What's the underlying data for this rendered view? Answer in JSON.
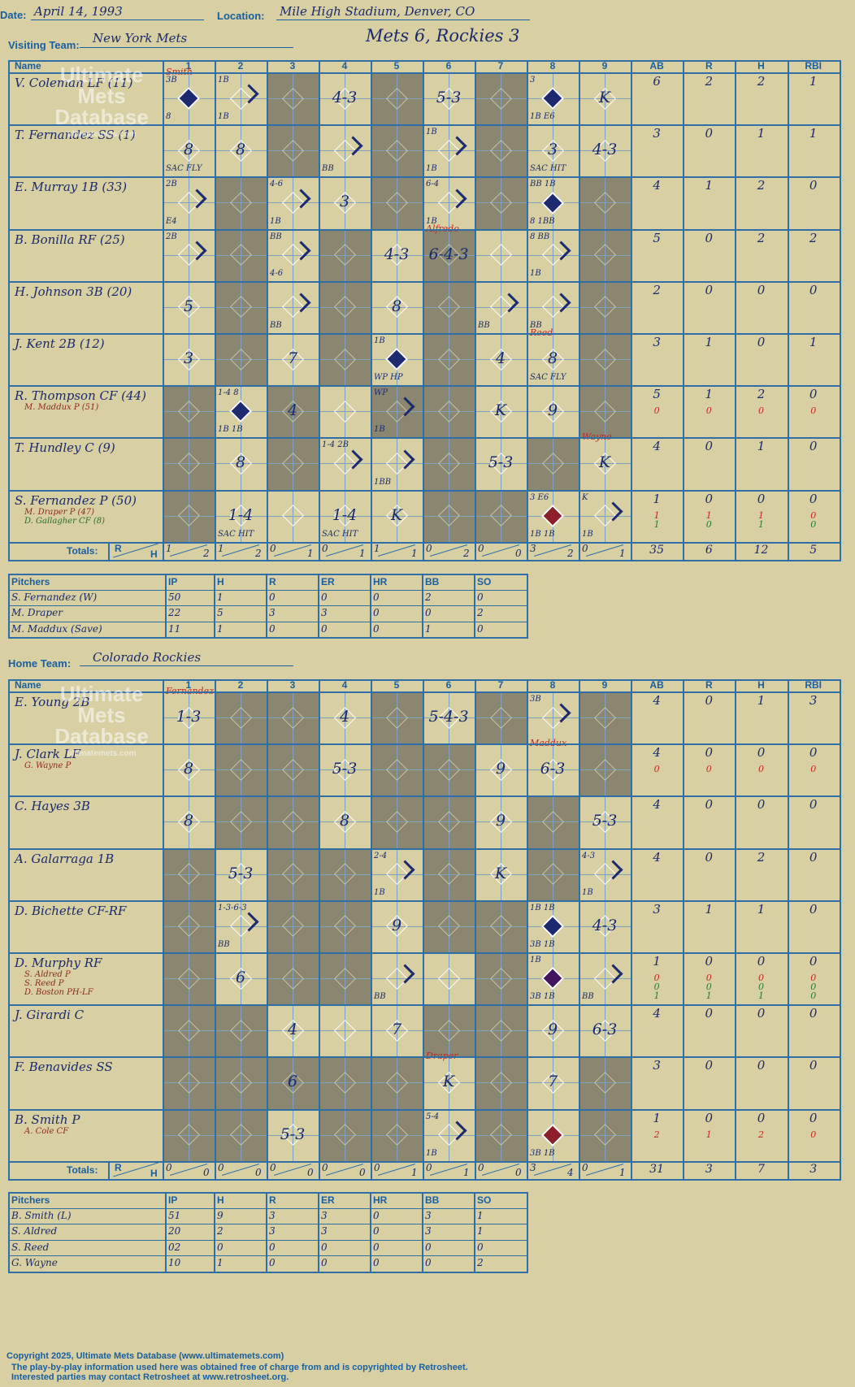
{
  "game": {
    "date_label": "Date:",
    "date": "April 14, 1993",
    "location_label": "Location:",
    "location": "Mile High Stadium, Denver, CO",
    "headline": "Mets 6, Rockies 3",
    "visiting_label": "Visiting Team:",
    "visiting_team": "New York Mets",
    "home_label": "Home Team:",
    "home_team": "Colorado Rockies"
  },
  "headers": {
    "name": "Name",
    "innings": [
      "1",
      "2",
      "3",
      "4",
      "5",
      "6",
      "7",
      "8",
      "9"
    ],
    "stats": [
      "AB",
      "R",
      "H",
      "RBI"
    ],
    "totals": "Totals:",
    "r": "R",
    "h": "H"
  },
  "watermark": {
    "line1": "Ultimate",
    "line2": "Mets",
    "line3": "Database",
    "url": "ultimatemets.com"
  },
  "visiting": {
    "players": [
      {
        "name": "V. Coleman LF (11)",
        "subs": [],
        "stats": [
          [
            "6",
            "2",
            "2",
            "1"
          ]
        ]
      },
      {
        "name": "T. Fernandez SS (1)",
        "subs": [],
        "stats": [
          [
            "3",
            "0",
            "1",
            "1"
          ]
        ]
      },
      {
        "name": "E. Murray 1B (33)",
        "subs": [],
        "stats": [
          [
            "4",
            "1",
            "2",
            "0"
          ]
        ]
      },
      {
        "name": "B. Bonilla RF (25)",
        "subs": [],
        "stats": [
          [
            "5",
            "0",
            "2",
            "2"
          ]
        ]
      },
      {
        "name": "H. Johnson 3B (20)",
        "subs": [],
        "stats": [
          [
            "2",
            "0",
            "0",
            "0"
          ]
        ]
      },
      {
        "name": "J. Kent 2B (12)",
        "subs": [],
        "stats": [
          [
            "3",
            "1",
            "0",
            "1"
          ]
        ]
      },
      {
        "name": "R. Thompson CF (44)",
        "subs": [
          "M. Maddux P (51)"
        ],
        "stats": [
          [
            "5",
            "1",
            "2",
            "0"
          ],
          [
            "0",
            "0",
            "0",
            "0"
          ]
        ]
      },
      {
        "name": "T. Hundley C (9)",
        "subs": [],
        "stats": [
          [
            "4",
            "0",
            "1",
            "0"
          ]
        ]
      },
      {
        "name": "S. Fernandez P (50)",
        "subs": [
          "M. Draper P (47)",
          "D. Gallagher CF (8)"
        ],
        "stats": [
          [
            "1",
            "0",
            "0",
            "0"
          ],
          [
            "1",
            "1",
            "1",
            "0"
          ],
          [
            "1",
            "0",
            "1",
            "0"
          ]
        ]
      }
    ],
    "totals": {
      "innings": [
        [
          "1",
          "2"
        ],
        [
          "1",
          "2"
        ],
        [
          "0",
          "1"
        ],
        [
          "0",
          "1"
        ],
        [
          "1",
          "1"
        ],
        [
          "0",
          "2"
        ],
        [
          "0",
          "0"
        ],
        [
          "3",
          "2"
        ],
        [
          "0",
          "1"
        ]
      ],
      "stats": [
        "35",
        "6",
        "12",
        "5"
      ]
    },
    "shaded": [
      [
        3,
        5,
        7
      ],
      [
        3,
        5,
        7
      ],
      [
        2,
        5,
        7,
        9
      ],
      [
        2,
        4,
        6,
        9
      ],
      [
        2,
        4,
        6,
        9
      ],
      [
        2,
        4,
        6,
        9
      ],
      [
        1,
        3,
        5,
        6,
        9
      ],
      [
        1,
        3,
        6,
        8
      ],
      [
        1,
        6,
        7
      ]
    ],
    "plays": [
      [
        {
          "i": 1,
          "t": "",
          "hit": "blue",
          "n": "3B",
          "n2": "8",
          "top": "Smith"
        },
        {
          "i": 2,
          "t": "",
          "path": "1B",
          "n": "1B",
          "n2": "1B"
        },
        {
          "i": 4,
          "t": "4-3"
        },
        {
          "i": 6,
          "t": "5-3"
        },
        {
          "i": 8,
          "t": "",
          "hit": "blue",
          "n": "3",
          "n2": "1B  E6"
        },
        {
          "i": 9,
          "t": "K"
        }
      ],
      [
        {
          "i": 1,
          "t": "8",
          "n2": "SAC FLY"
        },
        {
          "i": 2,
          "t": "8"
        },
        {
          "i": 4,
          "t": "",
          "path": "BB",
          "n2": "BB"
        },
        {
          "i": 6,
          "t": "",
          "path": "1B",
          "n": "1B",
          "n2": "1B"
        },
        {
          "i": 8,
          "t": "3",
          "n2": "SAC HIT"
        },
        {
          "i": 9,
          "t": "4-3"
        }
      ],
      [
        {
          "i": 1,
          "t": "",
          "path": "E4",
          "n": "2B",
          "n2": "E4"
        },
        {
          "i": 3,
          "t": "",
          "path": "1B",
          "n": "4-6",
          "n2": "1B"
        },
        {
          "i": 4,
          "t": "3"
        },
        {
          "i": 6,
          "t": "",
          "path": "1B",
          "n": "6-4",
          "n2": "1B"
        },
        {
          "i": 8,
          "t": "",
          "hit": "blue",
          "n": "BB  1B",
          "n2": "8  1BB"
        }
      ],
      [
        {
          "i": 1,
          "t": "",
          "path": "2B",
          "n": "2B"
        },
        {
          "i": 3,
          "t": "",
          "path": "BB",
          "n": "BB",
          "n2": "4-6"
        },
        {
          "i": 5,
          "t": "4-3"
        },
        {
          "i": 6,
          "t": "6-4-3",
          "top": "Alfredo"
        },
        {
          "i": 8,
          "t": "",
          "path": "1B",
          "n": "8  BB",
          "n2": "1B"
        }
      ],
      [
        {
          "i": 1,
          "t": "5"
        },
        {
          "i": 3,
          "t": "",
          "path": "BB",
          "n2": "BB"
        },
        {
          "i": 5,
          "t": "8"
        },
        {
          "i": 7,
          "t": "",
          "path": "BB",
          "n2": "BB"
        },
        {
          "i": 8,
          "t": "",
          "path": "BB",
          "n2": "BB"
        }
      ],
      [
        {
          "i": 1,
          "t": "3"
        },
        {
          "i": 3,
          "t": "7"
        },
        {
          "i": 5,
          "t": "",
          "hit": "blue",
          "n": "1B",
          "n2": "WP  HP"
        },
        {
          "i": 7,
          "t": "4"
        },
        {
          "i": 8,
          "t": "8",
          "n2": "SAC FLY",
          "top": "Reed"
        }
      ],
      [
        {
          "i": 2,
          "t": "",
          "hit": "blue",
          "n": "1-4  8",
          "n2": "1B  1B"
        },
        {
          "i": 3,
          "t": "4"
        },
        {
          "i": 5,
          "t": "",
          "path": "1B",
          "n": "WP",
          "n2": "1B"
        },
        {
          "i": 7,
          "t": "K"
        },
        {
          "i": 8,
          "t": "9"
        }
      ],
      [
        {
          "i": 2,
          "t": "8"
        },
        {
          "i": 4,
          "t": "",
          "path": "2B",
          "n": "1-4  2B"
        },
        {
          "i": 5,
          "t": "",
          "path": "1BB",
          "n2": "1BB"
        },
        {
          "i": 7,
          "t": "5-3"
        },
        {
          "i": 9,
          "t": "K",
          "top": "Wayne"
        }
      ],
      [
        {
          "i": 2,
          "t": "1-4",
          "n2": "SAC HIT"
        },
        {
          "i": 4,
          "t": "1-4",
          "n2": "SAC HIT"
        },
        {
          "i": 5,
          "t": "K"
        },
        {
          "i": 8,
          "t": "",
          "hit": "red",
          "n": "3  E6",
          "n2": "1B  1B"
        },
        {
          "i": 9,
          "t": "",
          "path": "1B",
          "n": "K",
          "n2": "1B"
        }
      ]
    ],
    "pitchers": [
      [
        "S. Fernandez (W)",
        "50",
        "1",
        "0",
        "0",
        "0",
        "2",
        "0"
      ],
      [
        "M. Draper",
        "22",
        "5",
        "3",
        "3",
        "0",
        "0",
        "2"
      ],
      [
        "M. Maddux (Save)",
        "11",
        "1",
        "0",
        "0",
        "0",
        "1",
        "0"
      ]
    ]
  },
  "home": {
    "players": [
      {
        "name": "E. Young 2B",
        "subs": [],
        "stats": [
          [
            "4",
            "0",
            "1",
            "3"
          ]
        ]
      },
      {
        "name": "J. Clark LF",
        "subs": [
          "G. Wayne P"
        ],
        "stats": [
          [
            "4",
            "0",
            "0",
            "0"
          ],
          [
            "0",
            "0",
            "0",
            "0"
          ]
        ]
      },
      {
        "name": "C. Hayes 3B",
        "subs": [],
        "stats": [
          [
            "4",
            "0",
            "0",
            "0"
          ]
        ]
      },
      {
        "name": "A. Galarraga 1B",
        "subs": [],
        "stats": [
          [
            "4",
            "0",
            "2",
            "0"
          ]
        ]
      },
      {
        "name": "D. Bichette CF-RF",
        "subs": [],
        "stats": [
          [
            "3",
            "1",
            "1",
            "0"
          ]
        ]
      },
      {
        "name": "D. Murphy RF",
        "subs": [
          "S. Aldred P",
          "S. Reed P",
          "D. Boston PH-LF"
        ],
        "stats": [
          [
            "1",
            "0",
            "0",
            "0"
          ],
          [
            "0",
            "0",
            "0",
            "0"
          ],
          [
            "0",
            "0",
            "0",
            "0"
          ],
          [
            "1",
            "1",
            "1",
            "0"
          ]
        ]
      },
      {
        "name": "J. Girardi C",
        "subs": [],
        "stats": [
          [
            "4",
            "0",
            "0",
            "0"
          ]
        ]
      },
      {
        "name": "F. Benavides SS",
        "subs": [],
        "stats": [
          [
            "3",
            "0",
            "0",
            "0"
          ]
        ]
      },
      {
        "name": "B. Smith P",
        "subs": [
          "A. Cole CF"
        ],
        "stats": [
          [
            "1",
            "0",
            "0",
            "0"
          ],
          [
            "2",
            "1",
            "2",
            "0"
          ]
        ]
      }
    ],
    "totals": {
      "innings": [
        [
          "0",
          "0"
        ],
        [
          "0",
          "0"
        ],
        [
          "0",
          "0"
        ],
        [
          "0",
          "0"
        ],
        [
          "0",
          "1"
        ],
        [
          "0",
          "1"
        ],
        [
          "0",
          "0"
        ],
        [
          "3",
          "4"
        ],
        [
          "0",
          "1"
        ]
      ],
      "stats": [
        "31",
        "3",
        "7",
        "3"
      ]
    },
    "shaded": [
      [
        2,
        3,
        5,
        7,
        9
      ],
      [
        2,
        3,
        5,
        6,
        9
      ],
      [
        2,
        3,
        5,
        6,
        8
      ],
      [
        1,
        3,
        4,
        6,
        8
      ],
      [
        1,
        3,
        4,
        6,
        7
      ],
      [
        1,
        3,
        4,
        7
      ],
      [
        1,
        2,
        6,
        7
      ],
      [
        1,
        2,
        3,
        4,
        5,
        7,
        9
      ],
      [
        1,
        2,
        4,
        5,
        7,
        9
      ]
    ],
    "plays": [
      [
        {
          "i": 1,
          "t": "1-3",
          "top": "Fernandez"
        },
        {
          "i": 4,
          "t": "4"
        },
        {
          "i": 6,
          "t": "5-4-3"
        },
        {
          "i": 8,
          "t": "",
          "path": "3B",
          "n": "3B"
        }
      ],
      [
        {
          "i": 1,
          "t": "8"
        },
        {
          "i": 4,
          "t": "5-3"
        },
        {
          "i": 7,
          "t": "9"
        },
        {
          "i": 8,
          "t": "6-3",
          "top": "Maddux"
        }
      ],
      [
        {
          "i": 1,
          "t": "8"
        },
        {
          "i": 4,
          "t": "8"
        },
        {
          "i": 7,
          "t": "9"
        },
        {
          "i": 9,
          "t": "5-3"
        }
      ],
      [
        {
          "i": 2,
          "t": "5-3"
        },
        {
          "i": 5,
          "t": "",
          "path": "1B",
          "n": "2-4",
          "n2": "1B"
        },
        {
          "i": 7,
          "t": "K"
        },
        {
          "i": 9,
          "t": "",
          "path": "1B",
          "n": "4-3",
          "n2": "1B"
        }
      ],
      [
        {
          "i": 2,
          "t": "",
          "path": "BB",
          "n": "1-3-6-3",
          "n2": "BB"
        },
        {
          "i": 5,
          "t": "9"
        },
        {
          "i": 8,
          "t": "",
          "hit": "blue",
          "n": "1B  1B",
          "n2": "3B  1B"
        },
        {
          "i": 9,
          "t": "4-3"
        }
      ],
      [
        {
          "i": 2,
          "t": "6"
        },
        {
          "i": 5,
          "t": "",
          "path": "BB",
          "n2": "BB"
        },
        {
          "i": 8,
          "t": "",
          "hit": "purple",
          "n": "1B",
          "n2": "3B  1B"
        },
        {
          "i": 9,
          "t": "",
          "path": "BB",
          "n2": "BB"
        }
      ],
      [
        {
          "i": 3,
          "t": "4"
        },
        {
          "i": 5,
          "t": "7"
        },
        {
          "i": 8,
          "t": "9"
        },
        {
          "i": 9,
          "t": "6-3"
        }
      ],
      [
        {
          "i": 3,
          "t": "6"
        },
        {
          "i": 6,
          "t": "K",
          "top": "Draper"
        },
        {
          "i": 8,
          "t": "7"
        }
      ],
      [
        {
          "i": 3,
          "t": "5-3"
        },
        {
          "i": 6,
          "t": "",
          "path": "1B",
          "n": "5-4",
          "n2": "1B"
        },
        {
          "i": 8,
          "t": "",
          "hit": "red",
          "n2": "3B  1B"
        }
      ]
    ],
    "pitchers": [
      [
        "B. Smith (L)",
        "51",
        "9",
        "3",
        "3",
        "0",
        "3",
        "1"
      ],
      [
        "S. Aldred",
        "20",
        "2",
        "3",
        "3",
        "0",
        "3",
        "1"
      ],
      [
        "S. Reed",
        "02",
        "0",
        "0",
        "0",
        "0",
        "0",
        "0"
      ],
      [
        "G. Wayne",
        "10",
        "1",
        "0",
        "0",
        "0",
        "0",
        "2"
      ]
    ]
  },
  "pitcher_headers": [
    "Pitchers",
    "IP",
    "H",
    "R",
    "ER",
    "HR",
    "BB",
    "SO"
  ],
  "footer": {
    "line1": "Copyright 2025, Ultimate Mets Database (www.ultimatemets.com)",
    "line2": "The play-by-play information used here was obtained free of charge from and is copyrighted by Retrosheet.",
    "line3": "Interested parties may contact Retrosheet at www.retrosheet.org."
  },
  "colors": {
    "background": "#d8cfa3",
    "grid": "#2f6fa8",
    "shade": "#8a8670",
    "ink": "#1c2a6b",
    "red_ink": "#c0281e"
  }
}
